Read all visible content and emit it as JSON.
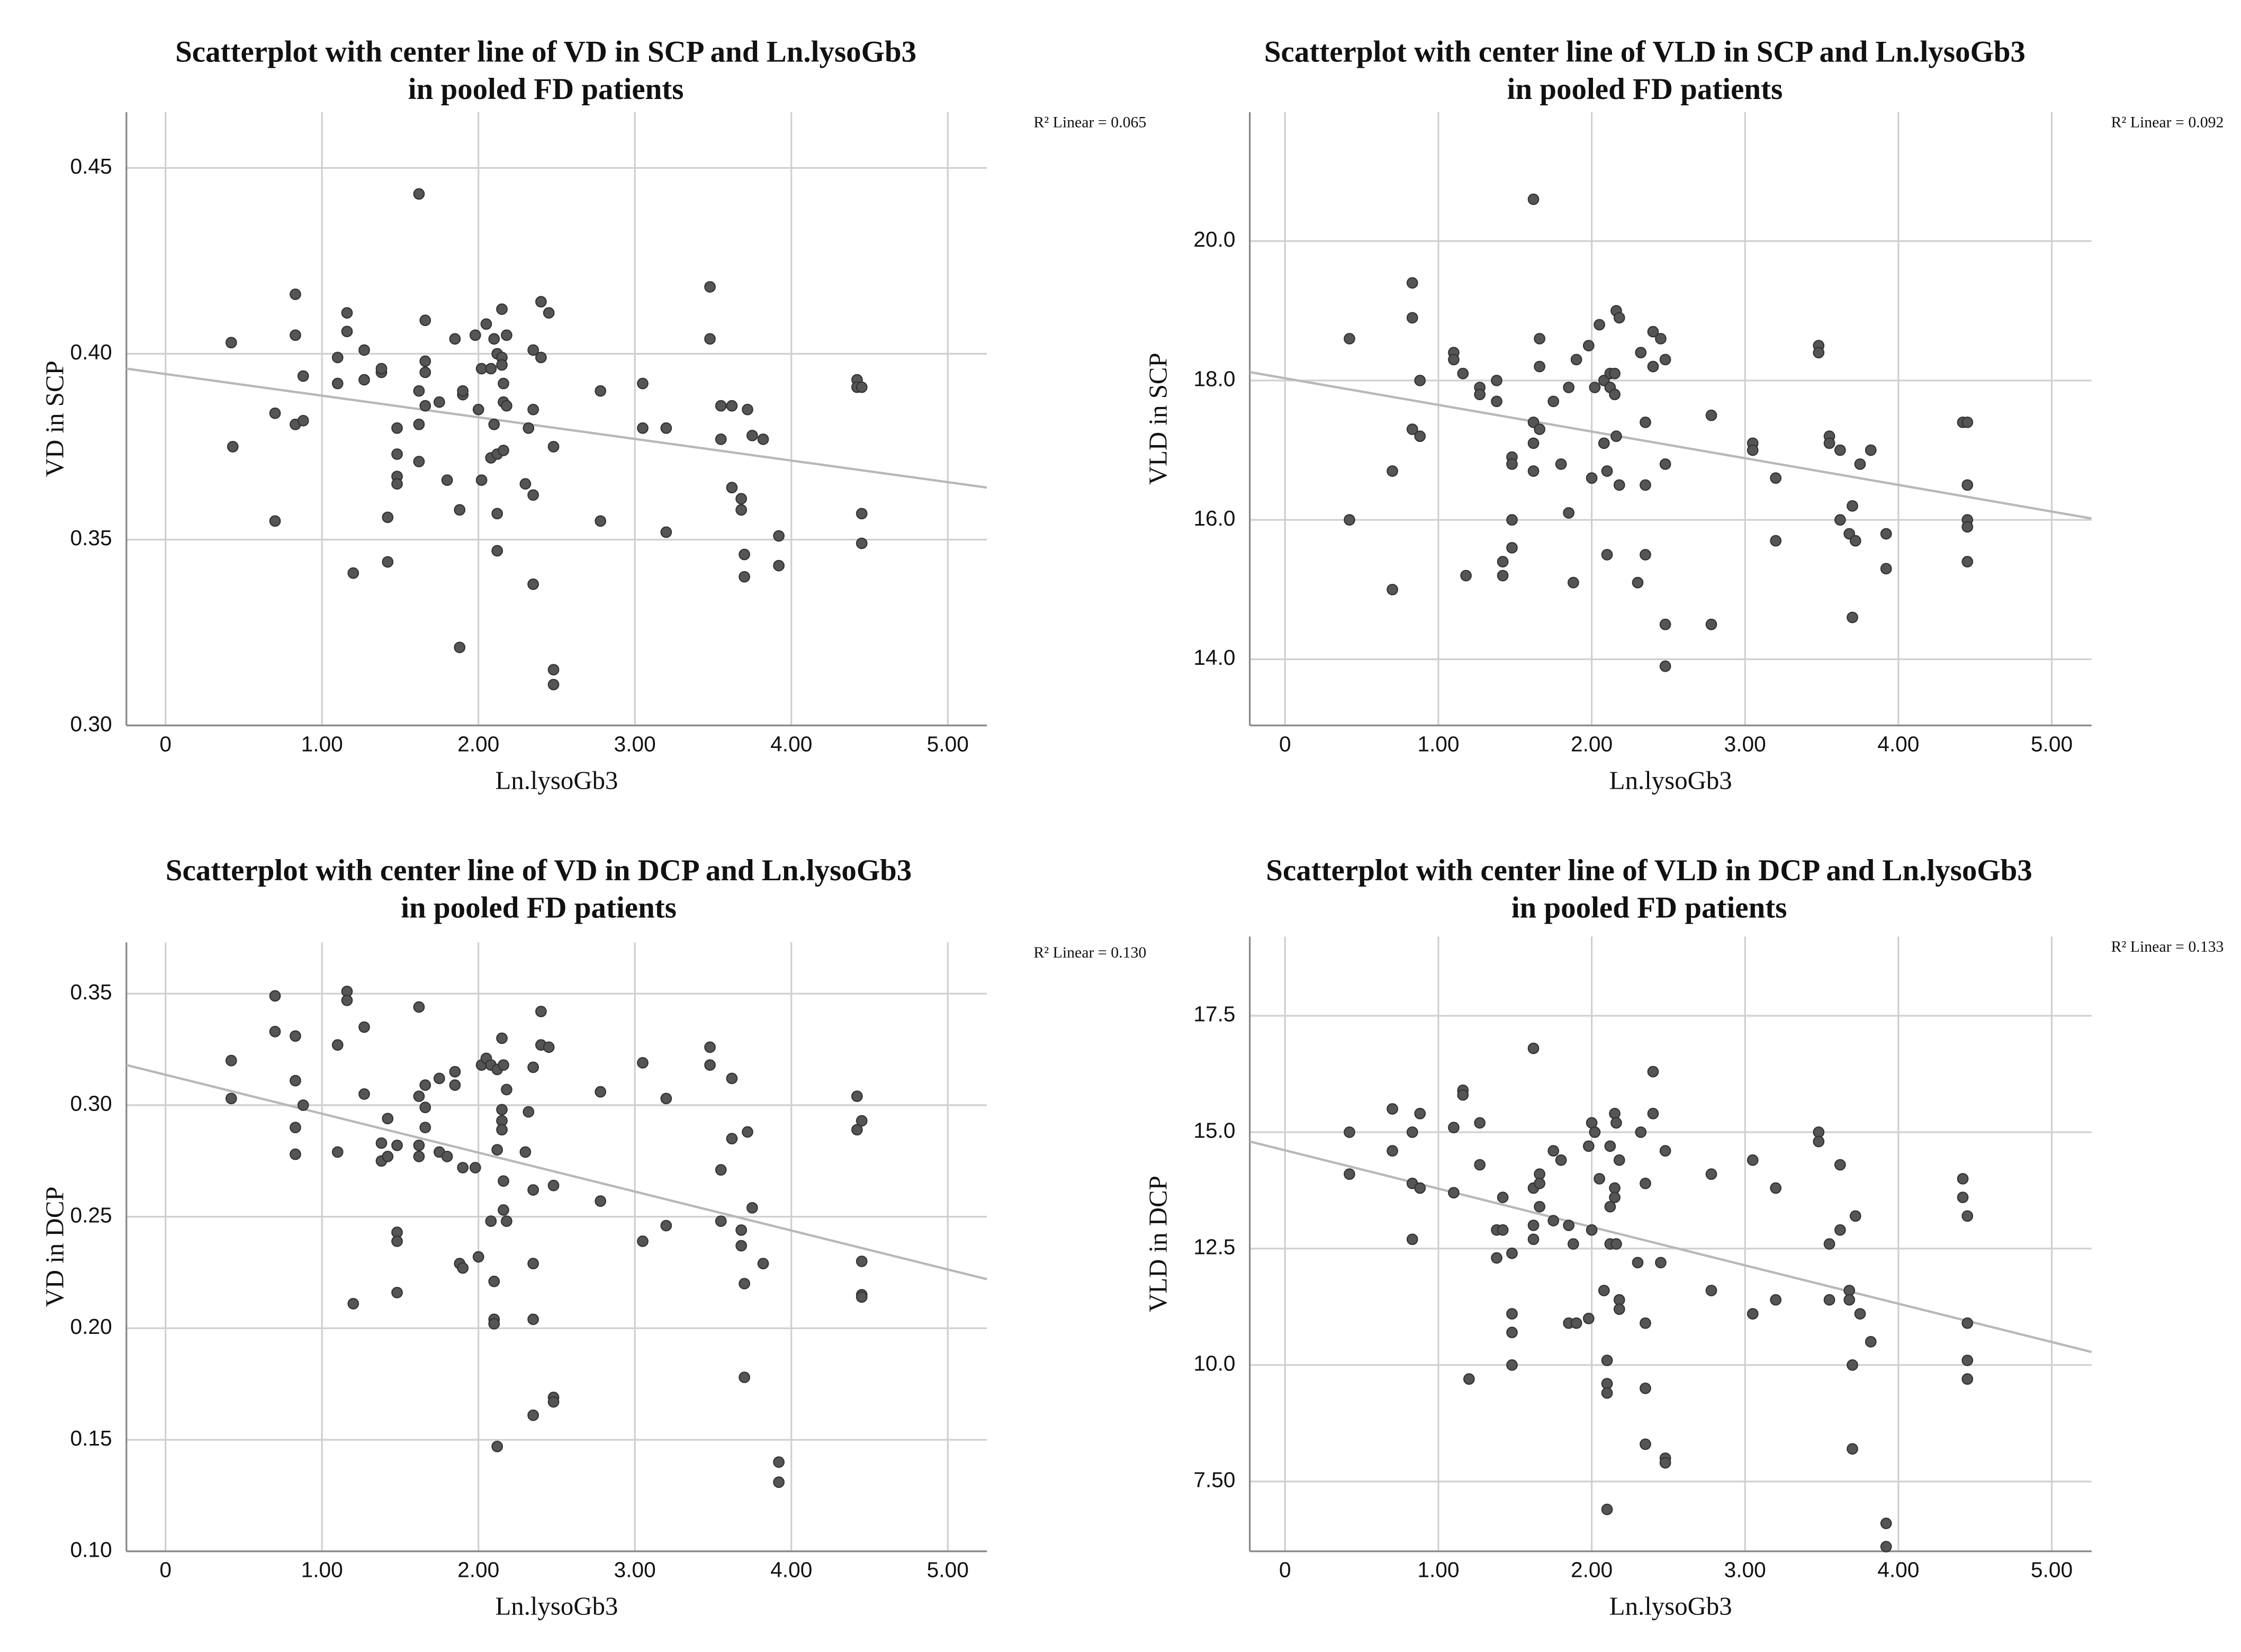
{
  "chart_data": [
    {
      "type": "scatter",
      "title": [
        "Scatterplot with center line of VD in SCP and Ln.lysoGb3",
        "in pooled FD patients"
      ],
      "x_label": "Ln.lysoGb3",
      "y_label": "VD in SCP",
      "annotation": "R² Linear = 0.065",
      "color": "#555555",
      "grid": true,
      "xlim": [
        -0.25,
        5.25
      ],
      "ylim": [
        0.3,
        0.465
      ],
      "xticks": [
        0,
        {
          "value": 1,
          "label": "1.00"
        },
        {
          "value": 2,
          "label": "2.00"
        },
        {
          "value": 3,
          "label": "3.00"
        },
        {
          "value": 4,
          "label": "4.00"
        },
        {
          "value": 5,
          "label": "5.00"
        }
      ],
      "yticks": [
        {
          "value": 0.3,
          "label": "0.30"
        },
        0.35,
        {
          "value": 0.4,
          "label": "0.40"
        },
        0.45
      ],
      "fit_line": {
        "x": [
          -0.25,
          5.25
        ],
        "y": [
          0.396,
          0.364
        ]
      },
      "x": [
        0.42,
        0.43,
        0.7,
        0.7,
        0.83,
        0.83,
        0.83,
        0.88,
        0.88,
        1.1,
        1.1,
        1.16,
        1.16,
        1.2,
        1.27,
        1.27,
        1.38,
        1.38,
        1.42,
        1.42,
        1.48,
        1.48,
        1.48,
        1.48,
        1.62,
        1.62,
        1.62,
        1.62,
        1.66,
        1.66,
        1.66,
        1.66,
        1.75,
        1.8,
        1.85,
        1.88,
        1.88,
        1.9,
        1.9,
        1.98,
        2.0,
        2.02,
        2.02,
        2.05,
        2.08,
        2.08,
        2.1,
        2.1,
        2.12,
        2.12,
        2.12,
        2.12,
        2.15,
        2.15,
        2.15,
        2.16,
        2.16,
        2.16,
        2.18,
        2.18,
        2.3,
        2.32,
        2.35,
        2.35,
        2.35,
        2.35,
        2.4,
        2.4,
        2.45,
        2.48,
        2.48,
        2.48,
        2.78,
        2.78,
        3.05,
        3.05,
        3.2,
        3.2,
        3.48,
        3.48,
        3.55,
        3.55,
        3.62,
        3.62,
        3.68,
        3.68,
        3.7,
        3.7,
        3.72,
        3.75,
        3.82,
        3.92,
        3.92,
        4.42,
        4.42,
        4.45,
        4.45,
        4.45
      ],
      "y": [
        0.403,
        0.375,
        0.384,
        0.355,
        0.416,
        0.405,
        0.381,
        0.394,
        0.382,
        0.399,
        0.392,
        0.411,
        0.406,
        0.341,
        0.401,
        0.393,
        0.395,
        0.396,
        0.356,
        0.344,
        0.38,
        0.373,
        0.367,
        0.365,
        0.443,
        0.39,
        0.381,
        0.371,
        0.409,
        0.398,
        0.386,
        0.395,
        0.387,
        0.366,
        0.404,
        0.358,
        0.321,
        0.389,
        0.39,
        0.405,
        0.385,
        0.366,
        0.396,
        0.408,
        0.372,
        0.396,
        0.404,
        0.381,
        0.4,
        0.373,
        0.357,
        0.347,
        0.412,
        0.399,
        0.397,
        0.392,
        0.387,
        0.374,
        0.405,
        0.386,
        0.365,
        0.38,
        0.401,
        0.385,
        0.362,
        0.338,
        0.414,
        0.399,
        0.411,
        0.375,
        0.315,
        0.311,
        0.39,
        0.355,
        0.392,
        0.38,
        0.38,
        0.352,
        0.418,
        0.404,
        0.386,
        0.377,
        0.386,
        0.364,
        0.361,
        0.358,
        0.346,
        0.34,
        0.385,
        0.378,
        0.377,
        0.351,
        0.343,
        0.393,
        0.391,
        0.391,
        0.357,
        0.349
      ]
    },
    {
      "type": "scatter",
      "title": [
        "Scatterplot with center line of VLD in SCP and Ln.lysoGb3",
        "in pooled FD patients"
      ],
      "x_label": "Ln.lysoGb3",
      "y_label": "VLD in SCP",
      "annotation": "R² Linear = 0.092",
      "color": "#555555",
      "grid": true,
      "xlim": [
        -0.23,
        5.26
      ],
      "ylim": [
        13.05,
        21.85
      ],
      "xticks": [
        0,
        {
          "value": 1,
          "label": "1.00"
        },
        {
          "value": 2,
          "label": "2.00"
        },
        {
          "value": 3,
          "label": "3.00"
        },
        {
          "value": 4,
          "label": "4.00"
        },
        {
          "value": 5,
          "label": "5.00"
        }
      ],
      "yticks": [
        {
          "value": 14,
          "label": "14.0"
        },
        {
          "value": 16,
          "label": "16.0"
        },
        {
          "value": 18,
          "label": "18.0"
        },
        {
          "value": 20,
          "label": "20.0"
        }
      ],
      "fit_line": {
        "x": [
          -0.23,
          5.26
        ],
        "y": [
          18.12,
          16.02
        ]
      },
      "x": [
        0.42,
        0.42,
        0.7,
        0.7,
        0.83,
        0.83,
        0.83,
        0.88,
        0.88,
        1.1,
        1.1,
        1.16,
        1.18,
        1.27,
        1.27,
        1.38,
        1.38,
        1.42,
        1.42,
        1.48,
        1.48,
        1.48,
        1.48,
        1.62,
        1.62,
        1.62,
        1.62,
        1.66,
        1.66,
        1.66,
        1.75,
        1.8,
        1.85,
        1.85,
        1.88,
        1.9,
        1.98,
        2.0,
        2.02,
        2.05,
        2.08,
        2.08,
        2.1,
        2.1,
        2.12,
        2.12,
        2.15,
        2.15,
        2.16,
        2.16,
        2.18,
        2.18,
        2.3,
        2.32,
        2.35,
        2.35,
        2.35,
        2.4,
        2.4,
        2.45,
        2.48,
        2.48,
        2.48,
        2.48,
        2.78,
        2.78,
        3.05,
        3.05,
        3.2,
        3.2,
        3.48,
        3.48,
        3.55,
        3.55,
        3.62,
        3.62,
        3.68,
        3.7,
        3.7,
        3.72,
        3.75,
        3.82,
        3.92,
        3.92,
        4.42,
        4.45,
        4.45,
        4.45,
        4.45,
        4.45
      ],
      "y": [
        18.6,
        16.0,
        16.7,
        15.0,
        19.4,
        18.9,
        17.3,
        18.0,
        17.2,
        18.4,
        18.3,
        18.1,
        15.2,
        17.9,
        17.8,
        17.7,
        18.0,
        15.4,
        15.2,
        16.9,
        16.8,
        16.0,
        15.6,
        20.6,
        17.4,
        17.1,
        16.7,
        18.6,
        18.2,
        17.3,
        17.7,
        16.8,
        17.9,
        16.1,
        15.1,
        18.3,
        18.5,
        16.6,
        17.9,
        18.8,
        18.0,
        17.1,
        16.7,
        15.5,
        18.1,
        17.9,
        18.1,
        17.8,
        19.0,
        17.2,
        18.9,
        16.5,
        15.1,
        18.4,
        17.4,
        16.5,
        15.5,
        18.7,
        18.2,
        18.6,
        18.3,
        16.8,
        14.5,
        13.9,
        17.5,
        14.5,
        17.1,
        17.0,
        16.6,
        15.7,
        18.5,
        18.4,
        17.2,
        17.1,
        17.0,
        16.0,
        15.8,
        16.2,
        14.6,
        15.7,
        16.8,
        17.0,
        15.8,
        15.3,
        17.4,
        17.4,
        16.5,
        16.0,
        15.9,
        15.4
      ]
    },
    {
      "type": "scatter",
      "title": [
        "Scatterplot with center line of VD in DCP and Ln.lysoGb3",
        "in pooled FD patients"
      ],
      "x_label": "Ln.lysoGb3",
      "y_label": "VD in DCP",
      "annotation": "R² Linear = 0.130",
      "color": "#555555",
      "grid": true,
      "xlim": [
        -0.25,
        5.25
      ],
      "ylim": [
        0.1,
        0.373
      ],
      "xticks": [
        0,
        {
          "value": 1,
          "label": "1.00"
        },
        {
          "value": 2,
          "label": "2.00"
        },
        {
          "value": 3,
          "label": "3.00"
        },
        {
          "value": 4,
          "label": "4.00"
        },
        {
          "value": 5,
          "label": "5.00"
        }
      ],
      "yticks": [
        {
          "value": 0.1,
          "label": "0.10"
        },
        0.15,
        {
          "value": 0.2,
          "label": "0.20"
        },
        0.25,
        {
          "value": 0.3,
          "label": "0.30"
        },
        0.35
      ],
      "fit_line": {
        "x": [
          -0.25,
          5.25
        ],
        "y": [
          0.318,
          0.222
        ]
      },
      "x": [
        0.42,
        0.42,
        0.7,
        0.7,
        0.83,
        0.83,
        0.83,
        0.83,
        0.88,
        1.1,
        1.1,
        1.16,
        1.16,
        1.2,
        1.27,
        1.27,
        1.38,
        1.38,
        1.42,
        1.42,
        1.48,
        1.48,
        1.48,
        1.48,
        1.62,
        1.62,
        1.62,
        1.62,
        1.66,
        1.66,
        1.66,
        1.75,
        1.75,
        1.8,
        1.85,
        1.85,
        1.88,
        1.9,
        1.9,
        1.98,
        2.0,
        2.02,
        2.05,
        2.08,
        2.08,
        2.1,
        2.1,
        2.1,
        2.12,
        2.12,
        2.12,
        2.15,
        2.15,
        2.15,
        2.15,
        2.16,
        2.16,
        2.16,
        2.18,
        2.18,
        2.3,
        2.32,
        2.35,
        2.35,
        2.35,
        2.35,
        2.35,
        2.4,
        2.4,
        2.45,
        2.48,
        2.48,
        2.48,
        2.78,
        2.78,
        3.05,
        3.05,
        3.2,
        3.2,
        3.48,
        3.48,
        3.55,
        3.55,
        3.62,
        3.62,
        3.68,
        3.68,
        3.7,
        3.7,
        3.72,
        3.75,
        3.82,
        3.92,
        3.92,
        4.42,
        4.42,
        4.45,
        4.45,
        4.45,
        4.45
      ],
      "y": [
        0.32,
        0.303,
        0.349,
        0.333,
        0.331,
        0.311,
        0.29,
        0.278,
        0.3,
        0.327,
        0.279,
        0.351,
        0.347,
        0.211,
        0.335,
        0.305,
        0.283,
        0.275,
        0.294,
        0.277,
        0.282,
        0.243,
        0.239,
        0.216,
        0.344,
        0.304,
        0.282,
        0.277,
        0.309,
        0.299,
        0.29,
        0.312,
        0.279,
        0.277,
        0.315,
        0.309,
        0.229,
        0.227,
        0.272,
        0.272,
        0.232,
        0.318,
        0.321,
        0.318,
        0.248,
        0.204,
        0.202,
        0.221,
        0.147,
        0.316,
        0.28,
        0.33,
        0.298,
        0.293,
        0.289,
        0.318,
        0.266,
        0.253,
        0.307,
        0.248,
        0.279,
        0.297,
        0.317,
        0.262,
        0.229,
        0.204,
        0.161,
        0.342,
        0.327,
        0.326,
        0.264,
        0.169,
        0.167,
        0.306,
        0.257,
        0.319,
        0.239,
        0.303,
        0.246,
        0.326,
        0.318,
        0.271,
        0.248,
        0.312,
        0.285,
        0.244,
        0.237,
        0.22,
        0.178,
        0.288,
        0.254,
        0.229,
        0.14,
        0.131,
        0.304,
        0.289,
        0.293,
        0.23,
        0.215,
        0.214
      ]
    },
    {
      "type": "scatter",
      "title": [
        "Scatterplot with center line of VLD in DCP and Ln.lysoGb3",
        "in pooled FD patients"
      ],
      "x_label": "Ln.lysoGb3",
      "y_label": "VLD in DCP",
      "annotation": "R² Linear = 0.133",
      "color": "#555555",
      "grid": true,
      "xlim": [
        -0.23,
        5.26
      ],
      "ylim": [
        6.0,
        19.2
      ],
      "xticks": [
        0,
        {
          "value": 1,
          "label": "1.00"
        },
        {
          "value": 2,
          "label": "2.00"
        },
        {
          "value": 3,
          "label": "3.00"
        },
        {
          "value": 4,
          "label": "4.00"
        },
        {
          "value": 5,
          "label": "5.00"
        }
      ],
      "yticks": [
        {
          "value": 7.5,
          "label": "7.50"
        },
        {
          "value": 10,
          "label": "10.0"
        },
        12.5,
        {
          "value": 15,
          "label": "15.0"
        },
        17.5
      ],
      "fit_line": {
        "x": [
          -0.23,
          5.26
        ],
        "y": [
          14.8,
          10.28
        ]
      },
      "x": [
        0.42,
        0.42,
        0.7,
        0.7,
        0.83,
        0.83,
        0.83,
        0.88,
        0.88,
        1.1,
        1.1,
        1.16,
        1.16,
        1.2,
        1.27,
        1.27,
        1.38,
        1.38,
        1.42,
        1.42,
        1.48,
        1.48,
        1.48,
        1.48,
        1.62,
        1.62,
        1.62,
        1.62,
        1.66,
        1.66,
        1.66,
        1.75,
        1.75,
        1.8,
        1.85,
        1.85,
        1.88,
        1.9,
        1.98,
        1.98,
        2.0,
        2.0,
        2.02,
        2.05,
        2.08,
        2.1,
        2.1,
        2.1,
        2.1,
        2.12,
        2.12,
        2.12,
        2.15,
        2.15,
        2.15,
        2.16,
        2.16,
        2.18,
        2.18,
        2.18,
        2.3,
        2.32,
        2.35,
        2.35,
        2.35,
        2.35,
        2.4,
        2.4,
        2.45,
        2.48,
        2.48,
        2.48,
        2.78,
        2.78,
        3.05,
        3.05,
        3.2,
        3.2,
        3.48,
        3.48,
        3.55,
        3.55,
        3.62,
        3.62,
        3.68,
        3.68,
        3.7,
        3.7,
        3.72,
        3.75,
        3.82,
        3.92,
        3.92,
        4.42,
        4.42,
        4.45,
        4.45,
        4.45,
        4.45
      ],
      "y": [
        15.0,
        14.1,
        15.5,
        14.6,
        15.0,
        13.9,
        12.7,
        15.4,
        13.8,
        15.1,
        13.7,
        15.9,
        15.8,
        9.7,
        15.2,
        14.3,
        12.9,
        12.3,
        13.6,
        12.9,
        12.4,
        11.1,
        10.7,
        10.0,
        16.8,
        13.8,
        13.0,
        12.7,
        14.1,
        13.9,
        13.4,
        14.6,
        13.1,
        14.4,
        13.0,
        10.9,
        12.6,
        10.9,
        14.7,
        11.0,
        15.2,
        12.9,
        15.0,
        14.0,
        11.6,
        10.1,
        9.6,
        9.4,
        6.9,
        14.7,
        13.4,
        12.6,
        15.4,
        13.8,
        13.6,
        15.2,
        12.6,
        14.4,
        11.4,
        11.2,
        12.2,
        15.0,
        13.9,
        10.9,
        9.5,
        8.3,
        16.3,
        15.4,
        12.2,
        14.6,
        8.0,
        7.9,
        14.1,
        11.6,
        14.4,
        11.1,
        13.8,
        11.4,
        15.0,
        14.8,
        12.6,
        11.4,
        14.3,
        12.9,
        11.6,
        11.4,
        10.0,
        8.2,
        13.2,
        11.1,
        10.5,
        6.6,
        6.1,
        14.0,
        13.6,
        13.2,
        10.9,
        10.1,
        9.7
      ]
    }
  ]
}
